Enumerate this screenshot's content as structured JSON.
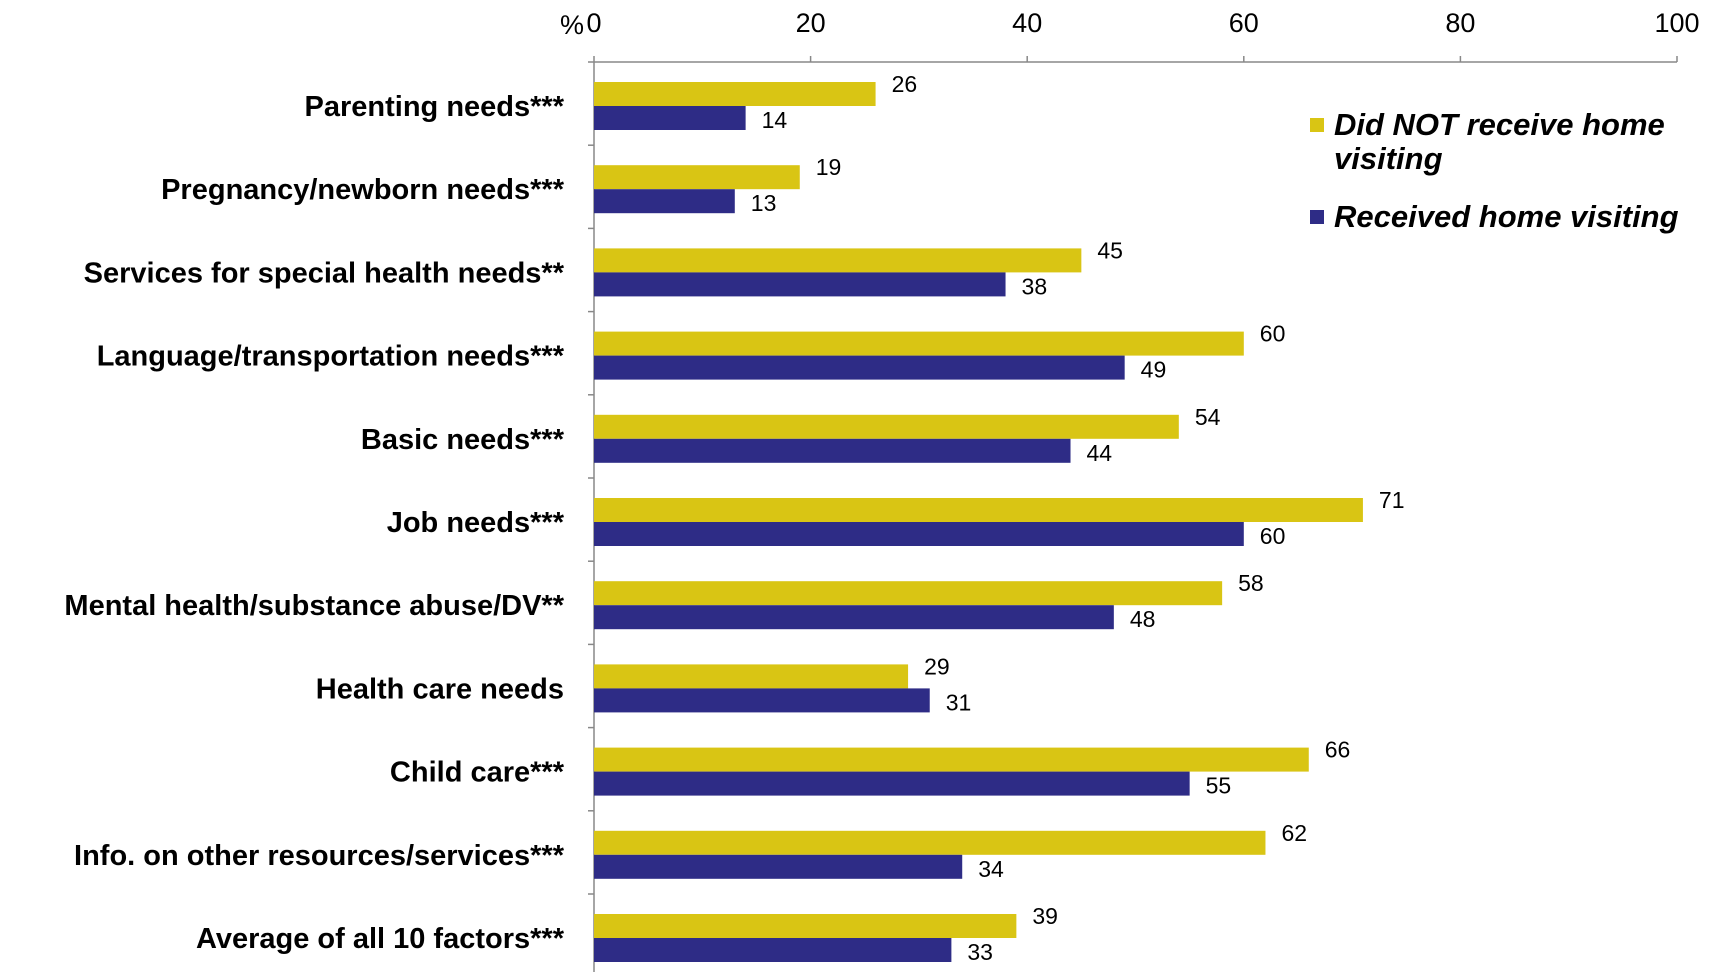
{
  "chart_data": {
    "type": "bar",
    "orientation": "horizontal",
    "unit_label": "%",
    "xlim": [
      0,
      100
    ],
    "xticks": [
      0,
      20,
      40,
      60,
      80,
      100
    ],
    "categories": [
      "Parenting needs***",
      "Pregnancy/newborn needs***",
      "Services for special health needs**",
      "Language/transportation needs***",
      "Basic needs***",
      "Job needs***",
      "Mental health/substance abuse/DV**",
      "Health care needs",
      "Child care***",
      "Info. on other resources/services***",
      "Average of all 10 factors***"
    ],
    "series": [
      {
        "name": "Did NOT receive home visiting",
        "color": "#D9C514",
        "values": [
          26,
          19,
          45,
          60,
          54,
          71,
          58,
          29,
          66,
          62,
          39
        ]
      },
      {
        "name": "Received home visiting",
        "color": "#2E2C86",
        "values": [
          14,
          13,
          38,
          49,
          44,
          60,
          48,
          31,
          55,
          34,
          33
        ]
      }
    ],
    "legend_position": "top-right",
    "grid": false
  }
}
